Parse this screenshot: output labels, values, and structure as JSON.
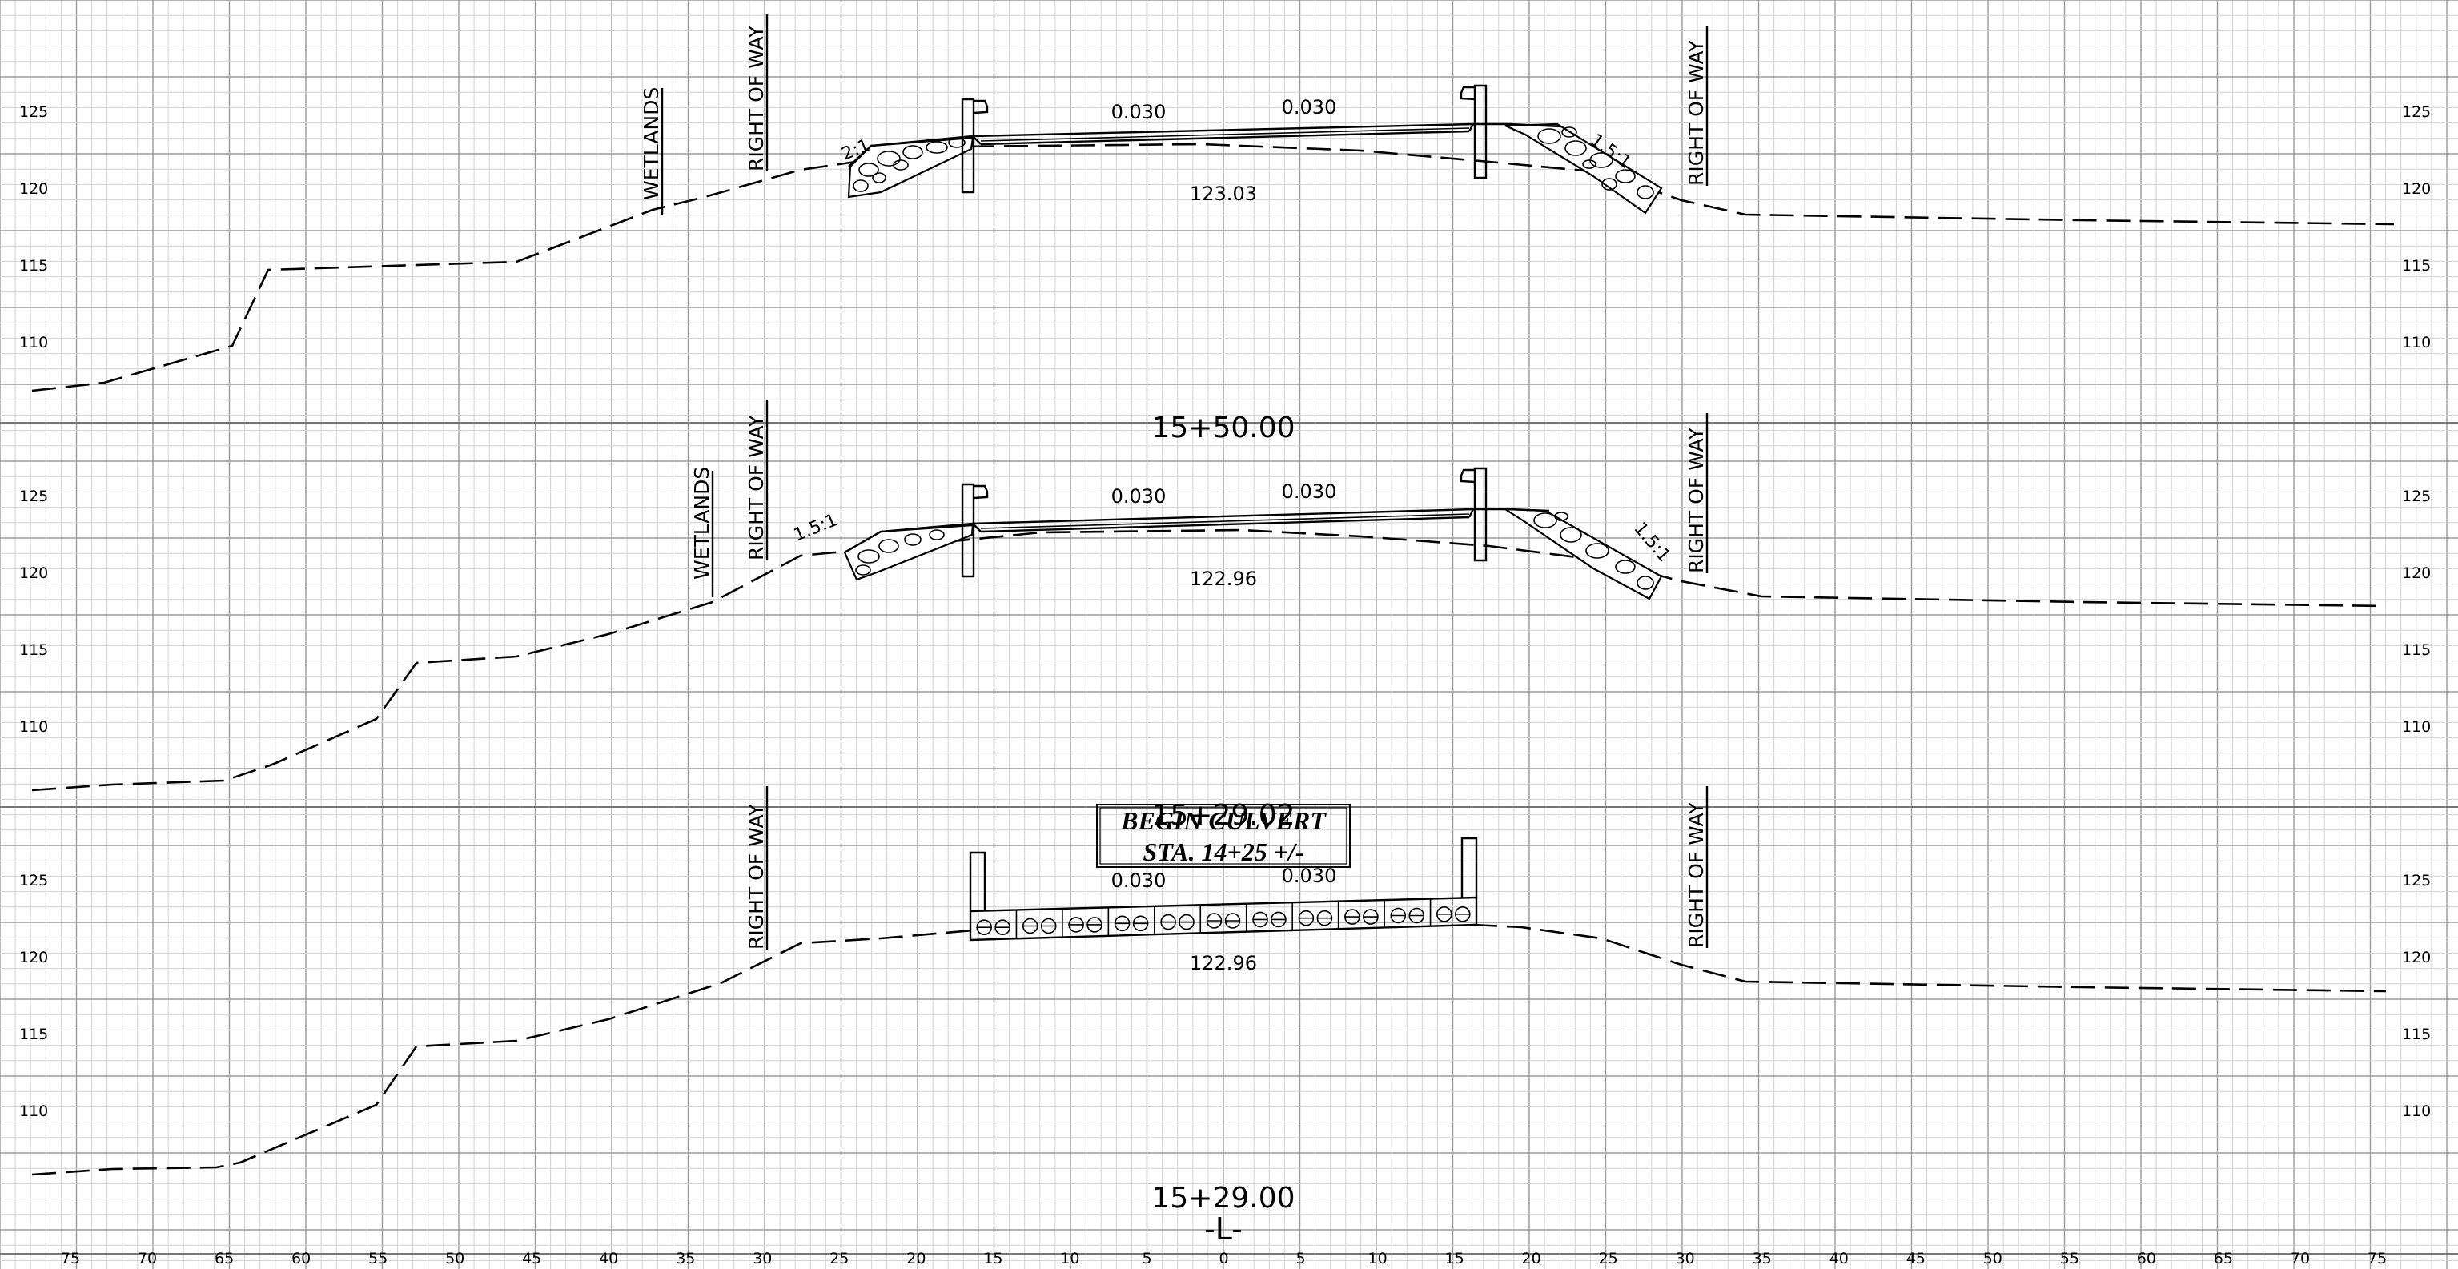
{
  "elevation_ticks": [
    "125",
    "120",
    "115",
    "110"
  ],
  "offset_ticks": [
    "75",
    "70",
    "65",
    "60",
    "55",
    "50",
    "45",
    "40",
    "35",
    "30",
    "25",
    "20",
    "15",
    "10",
    "5",
    "0",
    "5",
    "10",
    "15",
    "20",
    "25",
    "30",
    "35",
    "40",
    "45",
    "50",
    "55",
    "60",
    "65",
    "70",
    "75"
  ],
  "alignment_label": "-L-",
  "labels": {
    "right_of_way": "RIGHT OF WAY",
    "wetlands": "WETLANDS",
    "mannings_n": "0.030"
  },
  "sections": [
    {
      "station": "15+50.00",
      "centerline_elevation": "123.03",
      "left_slope": "2:1",
      "right_slope": "1.5:1",
      "has_wetlands": true,
      "has_culvert": false
    },
    {
      "station": "15+29.00",
      "centerline_elevation": "122.96",
      "left_slope": "1.5:1",
      "right_slope": "1.5:1",
      "has_wetlands": true,
      "has_culvert": false
    },
    {
      "station": "15+29.00",
      "centerline_elevation": "122.96",
      "has_wetlands": false,
      "has_culvert": true,
      "culvert_note_line1": "BEGIN CULVERT",
      "culvert_note_line2": "STA. 14+25 +/-",
      "overlapping_station_label": "15+29.02"
    }
  ]
}
